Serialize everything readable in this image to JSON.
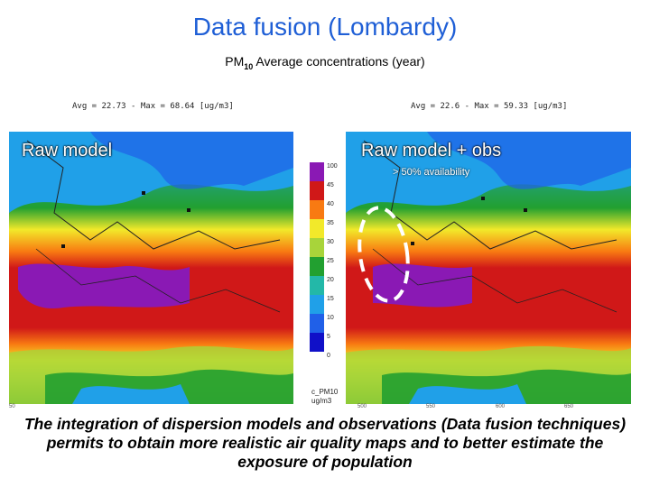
{
  "header": {
    "title": "Data fusion (Lombardy)",
    "subtitle_pm": "PM",
    "subtitle_sub": "10",
    "subtitle_rest": " Average concentrations (year)"
  },
  "left_panel": {
    "label": "Raw model",
    "stat": "Avg = 22.73 - Max = 68.64 [ug/m3]"
  },
  "right_panel": {
    "label": "Raw model + obs",
    "stat": "Avg = 22.6 - Max = 59.33 [ug/m3]",
    "availability": "> 50% availability"
  },
  "colorbar": {
    "ticks": [
      "100",
      "45",
      "40",
      "35",
      "30",
      "25",
      "20",
      "15",
      "10",
      "5",
      "0"
    ],
    "name": "c_PM10",
    "unit": "ug/m3",
    "colors": [
      "#8a19b4",
      "#d01818",
      "#f87a12",
      "#f2e92a",
      "#a8d43a",
      "#22a030",
      "#23b8a8",
      "#20a0e8",
      "#2060e8",
      "#1010c8"
    ]
  },
  "axis_ticks": [
    "50",
    "500",
    "550",
    "600",
    "650"
  ],
  "caption": "The integration of dispersion models and observations (Data fusion techniques) permits to obtain more realistic air quality maps and to better estimate the exposure of population"
}
